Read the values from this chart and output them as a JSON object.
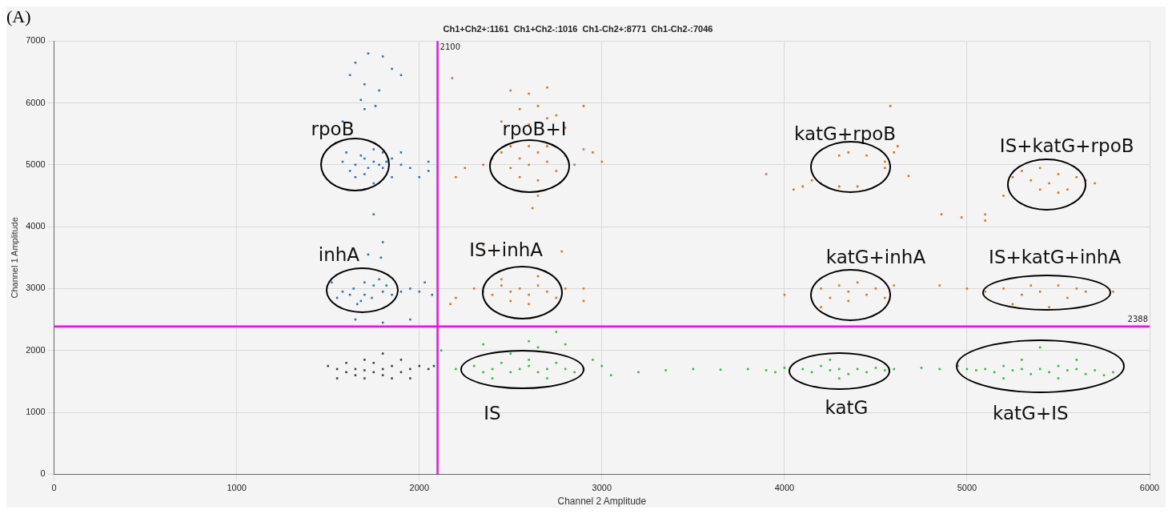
{
  "chart_data": {
    "type": "scatter",
    "title": "Ch1+Ch2+:1161  Ch1+Ch2-:1016  Ch1-Ch2+:8771  Ch1-Ch2-:7046",
    "xlabel": "Channel 2 Amplitude",
    "ylabel": "Channel 1 Amplitude",
    "xlim": [
      0,
      6000
    ],
    "xticks": [
      0,
      1000,
      2000,
      3000,
      4000,
      5000,
      6000
    ],
    "ylim": [
      0,
      7000
    ],
    "yticks": [
      0,
      1000,
      2000,
      3000,
      4000,
      5000,
      6000,
      7000
    ],
    "grid": true,
    "legend": false,
    "marker": "square",
    "series": [
      {
        "color": "#3f3f3f",
        "x": [
          1500,
          1550,
          1600,
          1650,
          1700,
          1750,
          1800,
          1850,
          1900,
          1950,
          1700,
          1750,
          1650,
          1800,
          1850,
          1700,
          1600,
          1900,
          1950,
          2000,
          2050,
          2080,
          1550,
          1800
        ],
        "values": [
          1750,
          1700,
          1650,
          1700,
          1680,
          1650,
          1700,
          1750,
          1650,
          1700,
          1550,
          1800,
          1600,
          1600,
          1550,
          1850,
          1800,
          1850,
          1550,
          1750,
          1700,
          1750,
          1550,
          1950
        ]
      },
      {
        "color": "#1874cd",
        "x": [
          1650,
          1720,
          1800,
          1850,
          1620,
          1700,
          1780,
          1900,
          1680,
          1760,
          1580,
          1700,
          1600,
          1650,
          1700,
          1750,
          1800,
          1850,
          1900,
          1700,
          1750,
          1800,
          1650,
          1750,
          1850,
          1950,
          1580,
          1720,
          1780,
          1680,
          1820,
          1700,
          1900,
          1620,
          2050,
          2000,
          2050,
          1750,
          1800,
          1790,
          1720,
          1520,
          1580,
          1640,
          1700,
          1750,
          1800,
          1850,
          1680,
          1740,
          1620,
          1780,
          1700,
          1900,
          1950,
          1550,
          1820,
          1660,
          2000,
          2030,
          2070,
          1650,
          1800,
          1950
        ],
        "values": [
          6650,
          6800,
          6750,
          6550,
          6450,
          6300,
          6200,
          6450,
          6050,
          5950,
          5700,
          5900,
          5200,
          5000,
          5100,
          5050,
          4950,
          5100,
          5000,
          4850,
          5250,
          5200,
          4800,
          4700,
          4800,
          4950,
          5050,
          4950,
          5000,
          5150,
          5050,
          4600,
          5200,
          4900,
          4900,
          4800,
          5050,
          4200,
          3750,
          3500,
          3550,
          3100,
          2950,
          3000,
          2900,
          3050,
          2950,
          2900,
          2800,
          2850,
          2900,
          3150,
          3100,
          2950,
          3000,
          2850,
          3050,
          2750,
          2950,
          3100,
          2900,
          2500,
          2450,
          2500
        ]
      },
      {
        "color": "#e07010",
        "x": [
          2180,
          2500,
          2600,
          2700,
          2650,
          2550,
          2750,
          2450,
          2600,
          2800,
          2700,
          2900,
          2400,
          2450,
          2500,
          2550,
          2600,
          2650,
          2700,
          2750,
          2800,
          2850,
          2500,
          2600,
          2700,
          2550,
          2650,
          2900,
          2950,
          3000,
          2350,
          2250,
          2200,
          2650,
          2620,
          2200,
          2300,
          2350,
          2400,
          2450,
          2500,
          2550,
          2600,
          2650,
          2700,
          2750,
          2800,
          2500,
          2600,
          2450,
          2650,
          2900,
          2900,
          2350,
          2780,
          2170,
          3900,
          4050,
          4100,
          4200,
          4300,
          4350,
          4450,
          4550,
          4550,
          4600,
          4620,
          4580,
          4150,
          4400,
          4300,
          4680,
          4860,
          4970,
          5100,
          5100,
          5200,
          5250,
          5300,
          5350,
          5400,
          5450,
          5500,
          5550,
          5600,
          5650,
          5700,
          5400,
          5500,
          4000,
          4200,
          4250,
          4300,
          4350,
          4400,
          4450,
          4500,
          4350,
          4200,
          4550,
          4600,
          4850,
          5000,
          5100,
          5200,
          5300,
          5350,
          5400,
          5500,
          5550,
          5600,
          5650,
          5800,
          5250,
          5450
        ],
        "values": [
          6400,
          6200,
          6150,
          6250,
          5950,
          5900,
          5800,
          5700,
          5650,
          5600,
          5750,
          5950,
          5100,
          5200,
          4950,
          5100,
          5000,
          5200,
          5050,
          4900,
          5150,
          5000,
          5300,
          5300,
          5300,
          4800,
          4750,
          5250,
          5200,
          5050,
          5000,
          4950,
          4800,
          4500,
          4300,
          2850,
          3000,
          2950,
          2900,
          3050,
          2950,
          3000,
          2900,
          3050,
          2950,
          2850,
          3000,
          2800,
          2750,
          3150,
          3200,
          3000,
          2800,
          3700,
          3600,
          2750,
          4850,
          4600,
          4650,
          4700,
          5150,
          5200,
          5150,
          5050,
          4950,
          5200,
          5300,
          5950,
          4750,
          4650,
          4650,
          4820,
          4200,
          4150,
          4200,
          4100,
          4500,
          4800,
          4900,
          4750,
          4950,
          4700,
          4850,
          4600,
          4800,
          4750,
          4700,
          4600,
          4550,
          2900,
          3000,
          2850,
          3050,
          2950,
          3100,
          2900,
          3000,
          2800,
          2700,
          2850,
          3050,
          3050,
          3000,
          2950,
          3000,
          2900,
          3050,
          2950,
          3050,
          2850,
          3000,
          2950,
          2950,
          2750,
          2700
        ]
      },
      {
        "color": "#22c522",
        "x": [
          2120,
          2200,
          2300,
          2350,
          2400,
          2450,
          2500,
          2550,
          2600,
          2650,
          2700,
          2750,
          2800,
          2850,
          2400,
          2600,
          2500,
          2700,
          2900,
          2350,
          2600,
          2750,
          2650,
          2800,
          3000,
          3050,
          2950,
          3200,
          3350,
          3500,
          3650,
          3800,
          3900,
          3950,
          4000,
          4100,
          4150,
          4200,
          4250,
          4300,
          4350,
          4400,
          4450,
          4500,
          4550,
          4250,
          4300,
          4600,
          4750,
          4850,
          4950,
          5000,
          5050,
          5100,
          5150,
          5200,
          5250,
          5300,
          5350,
          5400,
          5450,
          5500,
          5550,
          5600,
          5650,
          5700,
          5750,
          5800,
          5400,
          5300,
          5500,
          5200,
          5600
        ],
        "values": [
          2000,
          1700,
          1750,
          1650,
          1700,
          1800,
          1650,
          1700,
          1750,
          1650,
          1700,
          1800,
          1700,
          1650,
          1550,
          1850,
          1950,
          1550,
          1700,
          2100,
          2150,
          2300,
          2050,
          2100,
          1750,
          1600,
          1850,
          1650,
          1680,
          1700,
          1690,
          1700,
          1680,
          1650,
          1720,
          1700,
          1650,
          1750,
          1680,
          1700,
          1620,
          1700,
          1650,
          1720,
          1680,
          1850,
          1550,
          1700,
          1720,
          1700,
          1750,
          1700,
          1680,
          1700,
          1650,
          1750,
          1680,
          1700,
          1620,
          1700,
          1650,
          1750,
          1680,
          1700,
          1620,
          1680,
          1600,
          1650,
          2050,
          1850,
          1550,
          1550,
          1850
        ]
      }
    ],
    "ref_lines": [
      {
        "axis": "x",
        "value": 2100,
        "label": "2100",
        "color": "#ff00ff"
      },
      {
        "axis": "y",
        "value": 2388,
        "label": "2388",
        "color": "#ff00ff"
      }
    ],
    "annotations": [
      "(A)",
      "rpoB",
      "rpoB+I",
      "katG+rpoB",
      "IS+katG+rpoB",
      "inhA",
      "IS+inhA",
      "katG+inhA",
      "IS+katG+inhA",
      "IS",
      "katG",
      "katG+IS"
    ]
  }
}
